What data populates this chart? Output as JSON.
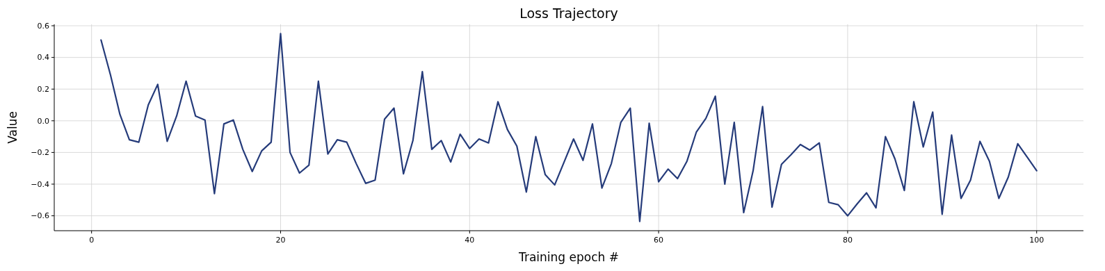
{
  "chart_data": {
    "type": "line",
    "title": "Loss Trajectory",
    "xlabel": "Training epoch #",
    "ylabel": "Value",
    "x": [
      1,
      2,
      3,
      4,
      5,
      6,
      7,
      8,
      9,
      10,
      11,
      12,
      13,
      14,
      15,
      16,
      17,
      18,
      19,
      20,
      21,
      22,
      23,
      24,
      25,
      26,
      27,
      28,
      29,
      30,
      31,
      32,
      33,
      34,
      35,
      36,
      37,
      38,
      39,
      40,
      41,
      42,
      43,
      44,
      45,
      46,
      47,
      48,
      49,
      50,
      51,
      52,
      53,
      54,
      55,
      56,
      57,
      58,
      59,
      60,
      61,
      62,
      63,
      64,
      65,
      66,
      67,
      68,
      69,
      70,
      71,
      72,
      73,
      74,
      75,
      76,
      77,
      78,
      79,
      80,
      81,
      82,
      83,
      84,
      85,
      86,
      87,
      88,
      89,
      90,
      91,
      92,
      93,
      94,
      95,
      96,
      97,
      98,
      99,
      100
    ],
    "series": [
      {
        "color": "#253b7a",
        "values": [
          0.51,
          0.29,
          0.04,
          -0.12,
          -0.135,
          0.1,
          0.23,
          -0.13,
          0.03,
          0.25,
          0.03,
          0.005,
          -0.46,
          -0.02,
          0.005,
          -0.18,
          -0.32,
          -0.19,
          -0.135,
          0.55,
          -0.2,
          -0.33,
          -0.28,
          0.25,
          -0.21,
          -0.12,
          -0.135,
          -0.27,
          -0.395,
          -0.375,
          0.01,
          0.08,
          -0.335,
          -0.125,
          0.31,
          -0.18,
          -0.125,
          -0.26,
          -0.085,
          -0.175,
          -0.115,
          -0.14,
          0.12,
          -0.055,
          -0.16,
          -0.45,
          -0.1,
          -0.34,
          -0.405,
          -0.26,
          -0.115,
          -0.25,
          -0.02,
          -0.425,
          -0.27,
          -0.01,
          0.08,
          -0.635,
          -0.015,
          -0.385,
          -0.305,
          -0.365,
          -0.255,
          -0.07,
          0.015,
          0.155,
          -0.4,
          -0.01,
          -0.58,
          -0.315,
          0.09,
          -0.545,
          -0.275,
          -0.215,
          -0.15,
          -0.185,
          -0.14,
          -0.515,
          -0.53,
          -0.6,
          -0.525,
          -0.455,
          -0.55,
          -0.1,
          -0.24,
          -0.44,
          0.12,
          -0.165,
          0.055,
          -0.59,
          -0.09,
          -0.49,
          -0.375,
          -0.13,
          -0.255,
          -0.49,
          -0.355,
          -0.145,
          -0.23,
          -0.315
        ]
      }
    ],
    "xlim": [
      -3.95,
      104.95
    ],
    "xticks": [
      0,
      20,
      40,
      60,
      80,
      100
    ],
    "ylim": [
      -0.694,
      0.609
    ],
    "yticks": [
      {
        "value": -0.6,
        "label": "−0.6"
      },
      {
        "value": -0.4,
        "label": "−0.4"
      },
      {
        "value": -0.2,
        "label": "−0.2"
      },
      {
        "value": 0,
        "label": "0.0"
      },
      {
        "value": 0.2,
        "label": "0.2"
      },
      {
        "value": 0.4,
        "label": "0.4"
      },
      {
        "value": 0.6,
        "label": "0.6"
      }
    ],
    "grid": true,
    "marker": "none",
    "line_style": "solid"
  }
}
